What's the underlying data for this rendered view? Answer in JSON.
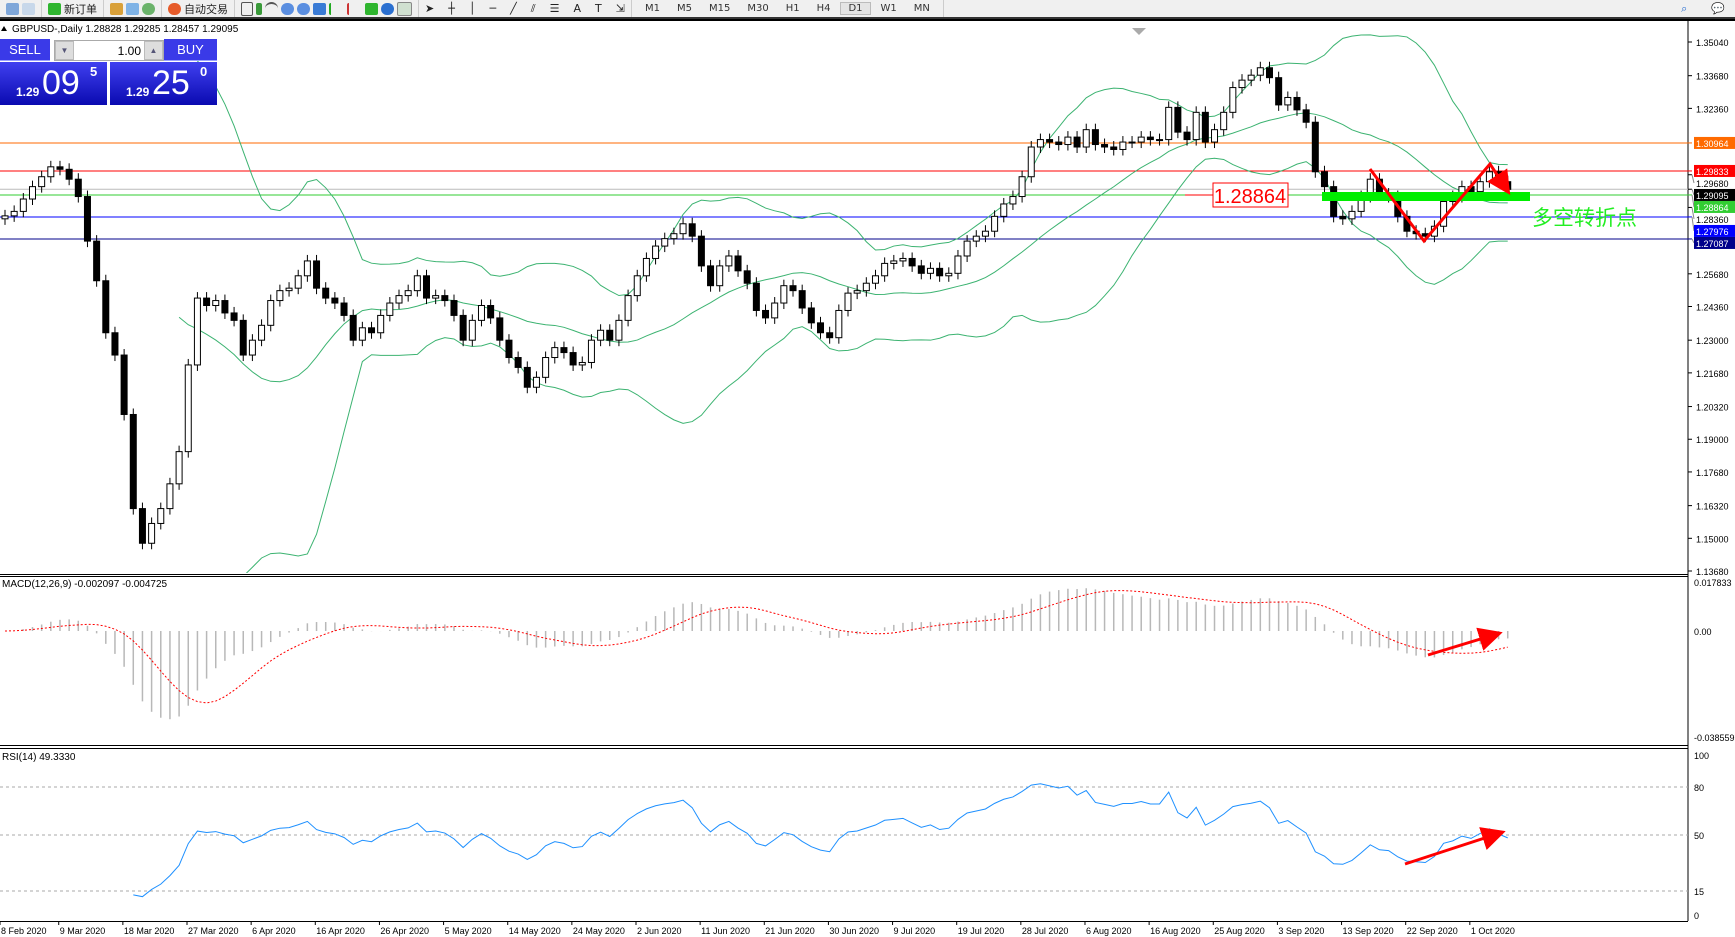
{
  "toolbar": {
    "new_order": "新订单",
    "auto_trading": "自动交易",
    "timeframes": [
      "M1",
      "M5",
      "M15",
      "M30",
      "H1",
      "H4",
      "D1",
      "W1",
      "MN"
    ],
    "active_timeframe": "D1"
  },
  "chart_title": "GBPUSD-,Daily  1.28828 1.29285 1.28457 1.29095",
  "trade_panel": {
    "sell_label": "SELL",
    "buy_label": "BUY",
    "lot": "1.00",
    "sell_price": {
      "prefix": "1.29",
      "big": "09",
      "sup": "5"
    },
    "buy_price": {
      "prefix": "1.29",
      "big": "25",
      "sup": "0"
    }
  },
  "macd_label": "MACD(12,26,9) -0.002097 -0.004725",
  "rsi_label": "RSI(14) 49.3330",
  "annotations": {
    "price_box": "1.28864",
    "note": "多空转折点"
  },
  "colors": {
    "bull": "#ffffff",
    "bear": "#000000",
    "bands": "#3cb371",
    "rsi": "#1e90ff",
    "macd_signal": "#ff0000",
    "arrow": "#ff0000",
    "green_bar": "#00ee00"
  },
  "chart_data": {
    "type": "candlestick",
    "symbol": "GBPUSD-",
    "timeframe": "Daily",
    "ylim": [
      1.1368,
      1.3504
    ],
    "price_ticks": [
      "1.35040",
      "1.33680",
      "1.32360",
      "1.29680",
      "1.28360",
      "1.25680",
      "1.24360",
      "1.23000",
      "1.21680",
      "1.20320",
      "1.19000",
      "1.17680",
      "1.16320",
      "1.15000",
      "1.13680"
    ],
    "date_ticks": [
      "8 Feb 2020",
      "9 Mar 2020",
      "18 Mar 2020",
      "27 Mar 2020",
      "6 Apr 2020",
      "16 Apr 2020",
      "26 Apr 2020",
      "5 May 2020",
      "14 May 2020",
      "24 May 2020",
      "2 Jun 2020",
      "11 Jun 2020",
      "21 Jun 2020",
      "30 Jun 2020",
      "9 Jul 2020",
      "19 Jul 2020",
      "28 Jul 2020",
      "6 Aug 2020",
      "16 Aug 2020",
      "25 Aug 2020",
      "3 Sep 2020",
      "13 Sep 2020",
      "22 Sep 2020",
      "1 Oct 2020"
    ],
    "first_open": 1.279,
    "close": [
      1.2802,
      1.282,
      1.287,
      1.292,
      1.296,
      1.3,
      1.299,
      1.295,
      1.288,
      1.27,
      1.254,
      1.233,
      1.224,
      1.2,
      1.162,
      1.148,
      1.156,
      1.162,
      1.172,
      1.185,
      1.22,
      1.247,
      1.244,
      1.246,
      1.241,
      1.238,
      1.224,
      1.23,
      1.236,
      1.246,
      1.25,
      1.251,
      1.256,
      1.262,
      1.251,
      1.247,
      1.245,
      1.24,
      1.23,
      1.235,
      1.233,
      1.24,
      1.245,
      1.248,
      1.25,
      1.256,
      1.247,
      1.248,
      1.246,
      1.24,
      1.23,
      1.238,
      1.244,
      1.239,
      1.23,
      1.223,
      1.219,
      1.211,
      1.215,
      1.223,
      1.227,
      1.225,
      1.22,
      1.221,
      1.23,
      1.234,
      1.23,
      1.238,
      1.248,
      1.256,
      1.263,
      1.268,
      1.271,
      1.273,
      1.277,
      1.272,
      1.26,
      1.252,
      1.26,
      1.264,
      1.258,
      1.253,
      1.242,
      1.239,
      1.245,
      1.252,
      1.25,
      1.243,
      1.237,
      1.233,
      1.231,
      1.242,
      1.249,
      1.25,
      1.253,
      1.256,
      1.261,
      1.262,
      1.263,
      1.26,
      1.257,
      1.259,
      1.256,
      1.257,
      1.264,
      1.27,
      1.272,
      1.274,
      1.28,
      1.285,
      1.288,
      1.296,
      1.308,
      1.311,
      1.31,
      1.309,
      1.312,
      1.308,
      1.315,
      1.309,
      1.308,
      1.307,
      1.31,
      1.31,
      1.312,
      1.311,
      1.311,
      1.324,
      1.314,
      1.311,
      1.322,
      1.31,
      1.315,
      1.322,
      1.332,
      1.335,
      1.337,
      1.34,
      1.336,
      1.325,
      1.328,
      1.323,
      1.318,
      1.298,
      1.292,
      1.28,
      1.279,
      1.282,
      1.288,
      1.295,
      1.289,
      1.288,
      1.28,
      1.274,
      1.273,
      1.272,
      1.276,
      1.286,
      1.288,
      1.292,
      1.29,
      1.294,
      1.298,
      1.294,
      1.2909
    ],
    "indicators": [
      "Bollinger Bands (20,2)",
      "MACD(12,26,9)",
      "RSI(14)"
    ],
    "levels": [
      {
        "price": 1.30964,
        "label": "1.30964",
        "color": "#ff6a00"
      },
      {
        "price": 1.29833,
        "label": "1.29833",
        "color": "#ff0000"
      },
      {
        "price": 1.29095,
        "label": "1.29095",
        "color": "#000000"
      },
      {
        "price": 1.28864,
        "label": "1.28864",
        "color": "#32cd32"
      },
      {
        "price": 1.27976,
        "label": "1.27976",
        "color": "#0000ff"
      },
      {
        "price": 1.27087,
        "label": "1.27087",
        "color": "#00008b"
      }
    ],
    "macd_range": [
      "0.017833",
      "0.00",
      "-0.038559"
    ],
    "rsi_ticks": [
      "100",
      "80",
      "50",
      "15",
      "0"
    ],
    "rsi_levels": [
      80,
      50,
      15
    ]
  }
}
